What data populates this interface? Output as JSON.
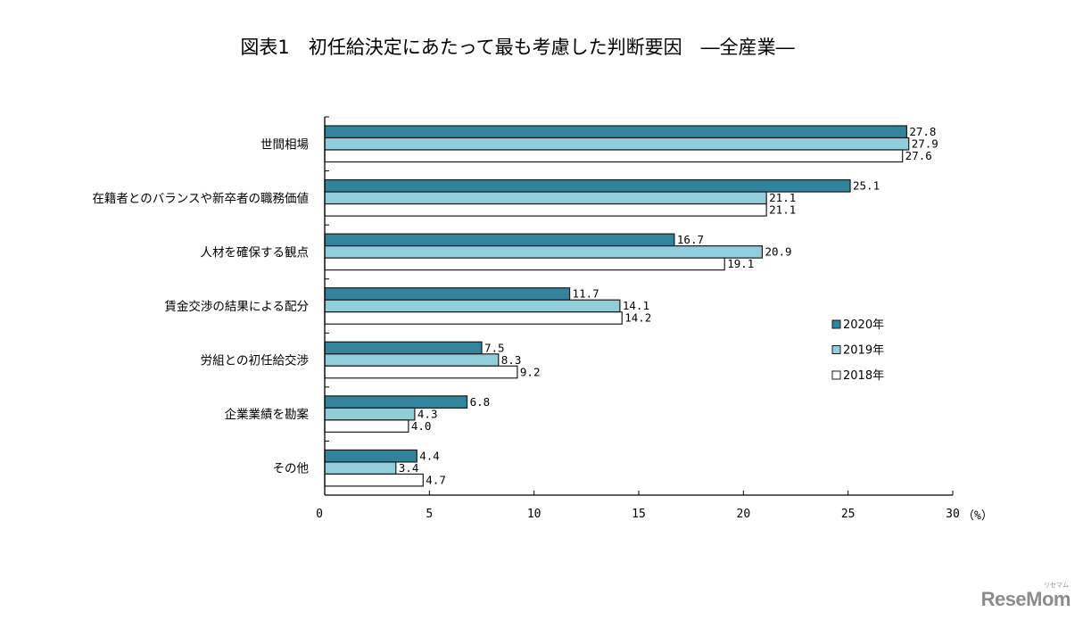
{
  "chart_data": {
    "type": "bar",
    "orientation": "horizontal",
    "title": "図表1　初任給決定にあたって最も考慮した判断要因　―全産業―",
    "categories": [
      "世間相場",
      "在籍者とのバランスや新卒者の職務価値",
      "人材を確保する観点",
      "賃金交渉の結果による配分",
      "労組との初任給交渉",
      "企業業績を勘案",
      "その他"
    ],
    "series": [
      {
        "name": "2020年",
        "color": "#31849b",
        "values": [
          27.8,
          25.1,
          16.7,
          11.7,
          7.5,
          6.8,
          4.4
        ],
        "labels": [
          "27.8",
          "25.1",
          "16.7",
          "11.7",
          "7.5",
          "6.8",
          "4.4"
        ]
      },
      {
        "name": "2019年",
        "color": "#92cddc",
        "values": [
          27.9,
          21.1,
          20.9,
          14.1,
          8.3,
          4.3,
          3.4
        ],
        "labels": [
          "27.9",
          "21.1",
          "20.9",
          "14.1",
          "8.3",
          "4.3",
          "3.4"
        ]
      },
      {
        "name": "2018年",
        "color": "#ffffff",
        "values": [
          27.6,
          21.1,
          19.1,
          14.2,
          9.2,
          4.0,
          4.7
        ],
        "labels": [
          "27.6",
          "21.1",
          "19.1",
          "14.2",
          "9.2",
          "4.0",
          "4.7"
        ]
      }
    ],
    "xlim": [
      0,
      30
    ],
    "xticks": [
      0,
      5,
      10,
      15,
      20,
      25,
      30
    ],
    "xtick_labels": [
      "0",
      "5",
      "10",
      "15",
      "20",
      "25",
      "30"
    ],
    "xlabel": "（%）",
    "ylabel": "",
    "grid": false,
    "legend_position": "right"
  },
  "watermark": {
    "text": "ReseMom",
    "subtext": "リセマム"
  }
}
